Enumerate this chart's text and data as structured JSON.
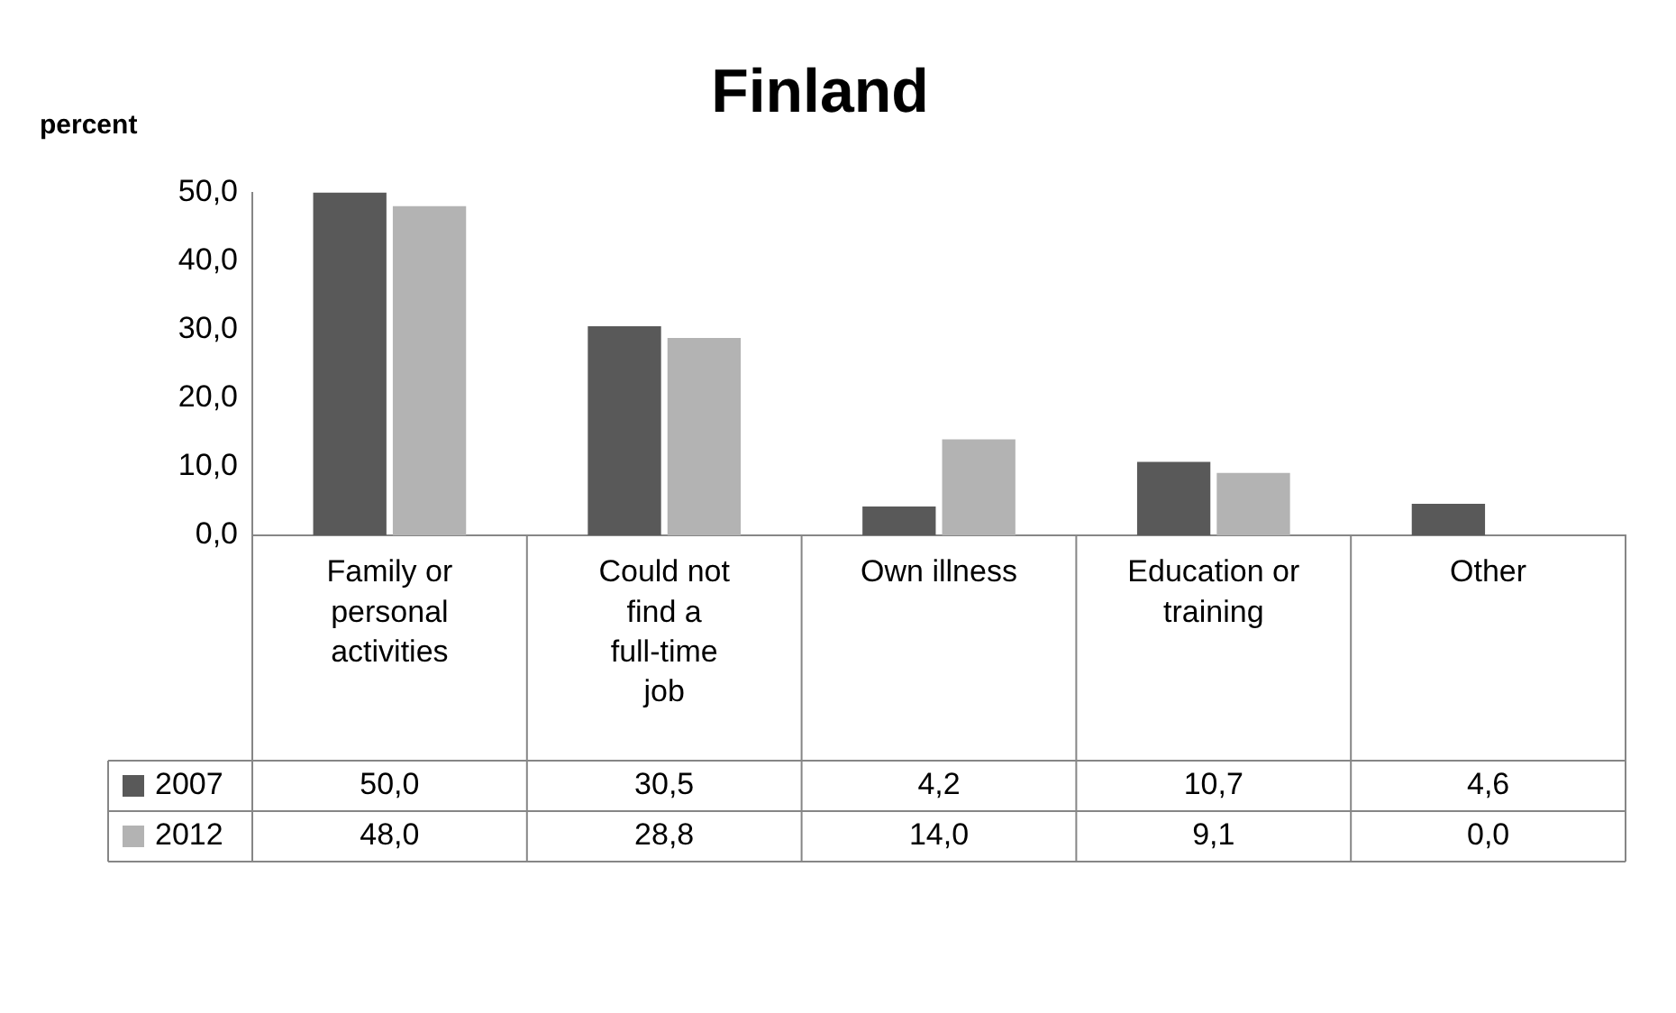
{
  "chart_data": {
    "type": "bar",
    "title": "Finland",
    "ylabel": "percent",
    "categories": [
      "Family or personal activities",
      "Could not find a full-time job",
      "Own illness",
      "Education or training",
      "Other"
    ],
    "series": [
      {
        "name": "2007",
        "color": "#595959",
        "values": [
          50.0,
          30.5,
          4.2,
          10.7,
          4.6
        ],
        "value_labels": [
          "50,0",
          "30,5",
          "4,2",
          "10,7",
          "4,6"
        ]
      },
      {
        "name": "2012",
        "color": "#b3b3b3",
        "values": [
          48.0,
          28.8,
          14.0,
          9.1,
          0.0
        ],
        "value_labels": [
          "48,0",
          "28,8",
          "14,0",
          "9,1",
          "0,0"
        ]
      }
    ],
    "ylim": [
      0,
      50
    ],
    "yticks": [
      {
        "value": 0,
        "label": "0,0"
      },
      {
        "value": 10,
        "label": "10,0"
      },
      {
        "value": 20,
        "label": "20,0"
      },
      {
        "value": 30,
        "label": "30,0"
      },
      {
        "value": 40,
        "label": "40,0"
      },
      {
        "value": 50,
        "label": "50,0"
      }
    ],
    "grid": false,
    "legend": "bottom"
  }
}
